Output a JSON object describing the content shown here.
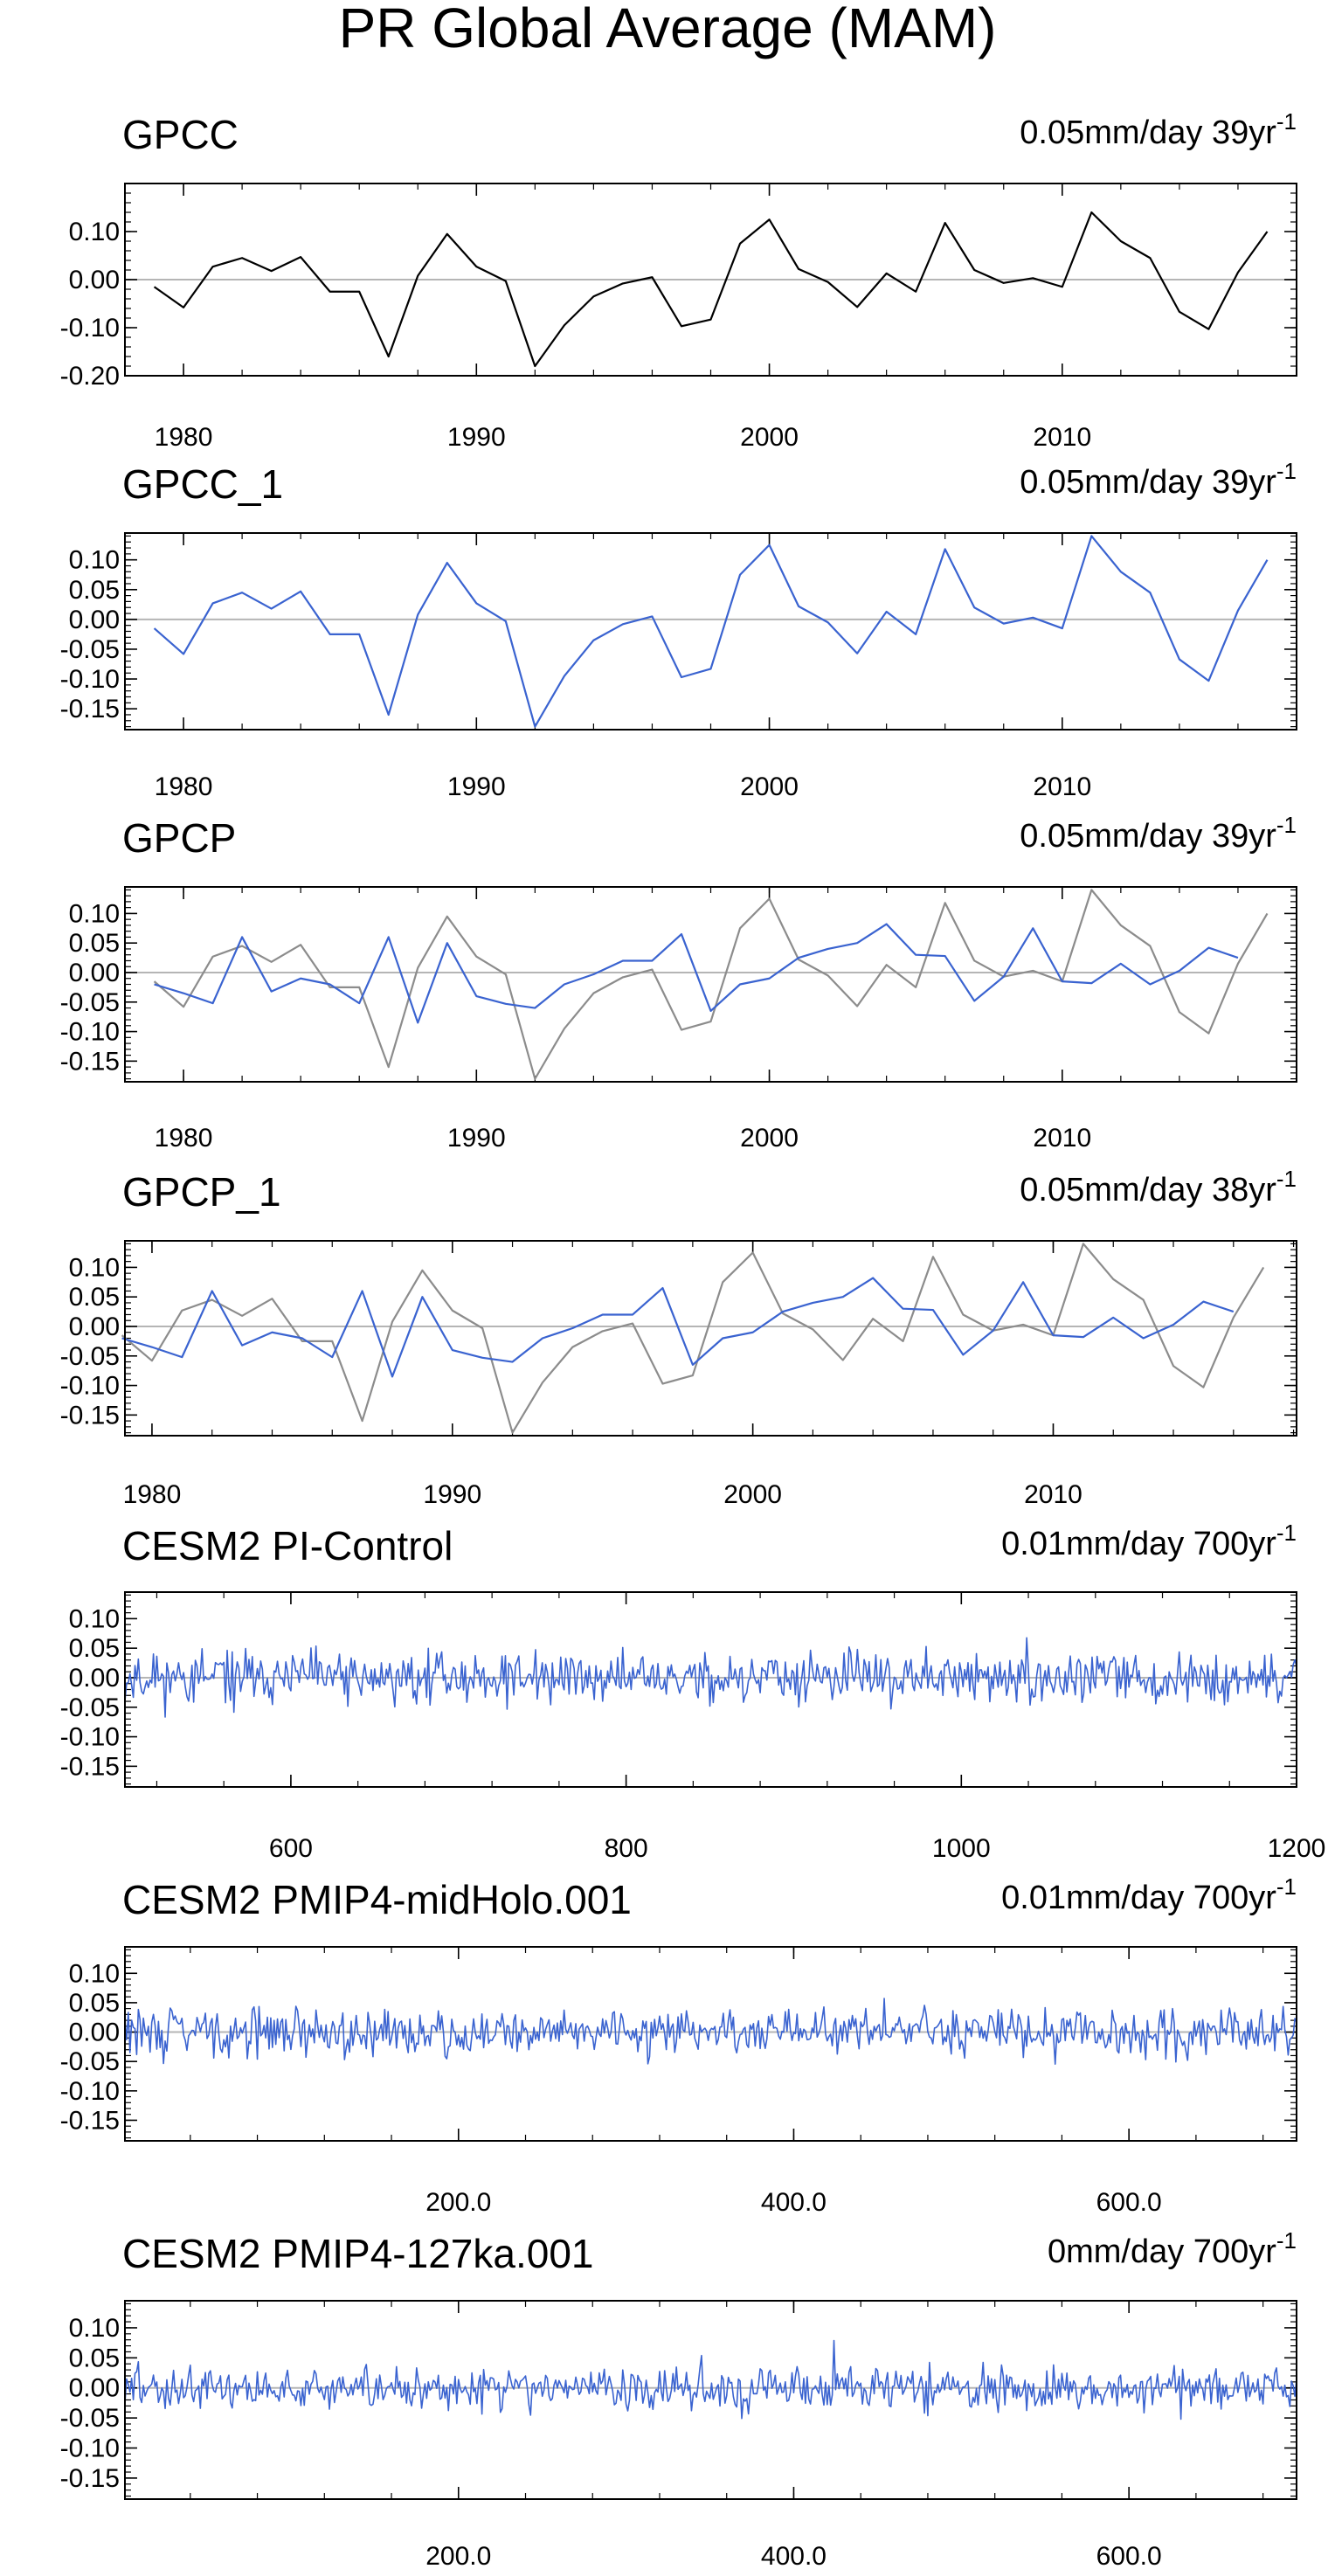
{
  "title": "PR Global Average (MAM)",
  "colors": {
    "observed": "#000000",
    "model": "#3a63d0",
    "reference": "#8c8c8c",
    "zero_line": "#b5b5b5",
    "frame": "#000000"
  },
  "chart_data": [
    {
      "type": "line",
      "title": "GPCC",
      "trend_label": "0.05mm/day 39yr",
      "trend_exponent": "-1",
      "xlim": [
        1978,
        2018
      ],
      "ylim": [
        -0.2,
        0.2
      ],
      "x_ticks": [
        1980,
        1990,
        2000,
        2010
      ],
      "x_tick_labels": [
        "1980",
        "1990",
        "2000",
        "2010"
      ],
      "y_ticks": [
        -0.2,
        -0.1,
        0,
        0.1
      ],
      "y_tick_labels": [
        "-0.20",
        "-0.10",
        "0.00",
        "0.10"
      ],
      "x_start": 1979,
      "series": [
        {
          "role": "observed",
          "values": [
            -0.015,
            -0.058,
            0.027,
            0.045,
            0.018,
            0.047,
            -0.025,
            -0.025,
            -0.16,
            0.008,
            0.095,
            0.027,
            -0.003,
            -0.18,
            -0.095,
            -0.035,
            -0.008,
            0.005,
            -0.097,
            -0.083,
            0.075,
            0.125,
            0.022,
            -0.005,
            -0.057,
            0.013,
            -0.025,
            0.118,
            0.02,
            -0.007,
            0.003,
            -0.015,
            0.14,
            0.08,
            0.045,
            -0.067,
            -0.103,
            0.015,
            0.1
          ]
        }
      ]
    },
    {
      "type": "line",
      "title": "GPCC_1",
      "trend_label": "0.05mm/day 39yr",
      "trend_exponent": "-1",
      "xlim": [
        1978,
        2018
      ],
      "ylim": [
        -0.185,
        0.145
      ],
      "x_ticks": [
        1980,
        1990,
        2000,
        2010
      ],
      "x_tick_labels": [
        "1980",
        "1990",
        "2000",
        "2010"
      ],
      "y_ticks": [
        -0.15,
        -0.1,
        -0.05,
        0,
        0.05,
        0.1
      ],
      "y_tick_labels": [
        "-0.15",
        "-0.10",
        "-0.05",
        "0.00",
        "0.05",
        "0.10"
      ],
      "x_start": 1979,
      "series": [
        {
          "role": "model",
          "values": [
            -0.015,
            -0.058,
            0.027,
            0.045,
            0.018,
            0.047,
            -0.025,
            -0.025,
            -0.16,
            0.008,
            0.095,
            0.027,
            -0.003,
            -0.18,
            -0.095,
            -0.035,
            -0.008,
            0.005,
            -0.097,
            -0.083,
            0.075,
            0.125,
            0.022,
            -0.005,
            -0.057,
            0.013,
            -0.025,
            0.118,
            0.02,
            -0.007,
            0.003,
            -0.015,
            0.14,
            0.08,
            0.045,
            -0.067,
            -0.103,
            0.015,
            0.1
          ]
        }
      ]
    },
    {
      "type": "line",
      "title": "GPCP",
      "trend_label": "0.05mm/day 39yr",
      "trend_exponent": "-1",
      "xlim": [
        1978,
        2018
      ],
      "ylim": [
        -0.185,
        0.145
      ],
      "x_ticks": [
        1980,
        1990,
        2000,
        2010
      ],
      "x_tick_labels": [
        "1980",
        "1990",
        "2000",
        "2010"
      ],
      "y_ticks": [
        -0.15,
        -0.1,
        -0.05,
        0,
        0.05,
        0.1
      ],
      "y_tick_labels": [
        "-0.15",
        "-0.10",
        "-0.05",
        "0.00",
        "0.05",
        "0.10"
      ],
      "x_start": 1979,
      "series": [
        {
          "role": "reference",
          "values": [
            -0.015,
            -0.058,
            0.027,
            0.045,
            0.018,
            0.047,
            -0.025,
            -0.025,
            -0.16,
            0.008,
            0.095,
            0.027,
            -0.003,
            -0.18,
            -0.095,
            -0.035,
            -0.008,
            0.005,
            -0.097,
            -0.083,
            0.075,
            0.125,
            0.022,
            -0.005,
            -0.057,
            0.013,
            -0.025,
            0.118,
            0.02,
            -0.007,
            0.003,
            -0.015,
            0.14,
            0.08,
            0.045,
            -0.067,
            -0.103,
            0.015,
            0.1
          ]
        },
        {
          "role": "model",
          "values": [
            -0.02,
            -0.035,
            -0.052,
            0.06,
            -0.032,
            -0.01,
            -0.02,
            -0.052,
            0.06,
            -0.085,
            0.05,
            -0.04,
            -0.053,
            -0.06,
            -0.02,
            -0.003,
            0.02,
            0.02,
            0.065,
            -0.065,
            -0.02,
            -0.01,
            0.025,
            0.04,
            0.05,
            0.082,
            0.03,
            0.028,
            -0.048,
            -0.007,
            0.075,
            -0.015,
            -0.018,
            0.015,
            -0.02,
            0.003,
            0.042,
            0.025
          ]
        }
      ]
    },
    {
      "type": "line",
      "title": "GPCP_1",
      "trend_label": "0.05mm/day 38yr",
      "trend_exponent": "-1",
      "xlim": [
        1979.1,
        2018.1
      ],
      "ylim": [
        -0.185,
        0.145
      ],
      "x_ticks": [
        1980,
        1990,
        2000,
        2010
      ],
      "x_tick_labels": [
        "1980",
        "1990",
        "2000",
        "2010"
      ],
      "y_ticks": [
        -0.15,
        -0.1,
        -0.05,
        0,
        0.05,
        0.1
      ],
      "y_tick_labels": [
        "-0.15",
        "-0.10",
        "-0.05",
        "0.00",
        "0.05",
        "0.10"
      ],
      "x_start": 1979,
      "series": [
        {
          "role": "reference",
          "values": [
            -0.015,
            -0.058,
            0.027,
            0.045,
            0.018,
            0.047,
            -0.025,
            -0.025,
            -0.16,
            0.008,
            0.095,
            0.027,
            -0.003,
            -0.18,
            -0.095,
            -0.035,
            -0.008,
            0.005,
            -0.097,
            -0.083,
            0.075,
            0.125,
            0.022,
            -0.005,
            -0.057,
            0.013,
            -0.025,
            0.118,
            0.02,
            -0.007,
            0.003,
            -0.015,
            0.14,
            0.08,
            0.045,
            -0.067,
            -0.103,
            0.015,
            0.1
          ]
        },
        {
          "role": "model",
          "values": [
            -0.02,
            -0.035,
            -0.052,
            0.06,
            -0.032,
            -0.01,
            -0.02,
            -0.052,
            0.06,
            -0.085,
            0.05,
            -0.04,
            -0.053,
            -0.06,
            -0.02,
            -0.003,
            0.02,
            0.02,
            0.065,
            -0.065,
            -0.02,
            -0.01,
            0.025,
            0.04,
            0.05,
            0.082,
            0.03,
            0.028,
            -0.048,
            -0.007,
            0.075,
            -0.015,
            -0.018,
            0.015,
            -0.02,
            0.003,
            0.042,
            0.025
          ]
        }
      ]
    },
    {
      "type": "line",
      "title": "CESM2 PI-Control",
      "trend_label": "0.01mm/day 700yr",
      "trend_exponent": "-1",
      "xlim": [
        501,
        1200
      ],
      "ylim": [
        -0.185,
        0.145
      ],
      "x_ticks": [
        600,
        800,
        1000,
        1200
      ],
      "x_tick_labels": [
        "600",
        "800",
        "1000",
        "1200"
      ],
      "y_ticks": [
        -0.15,
        -0.1,
        -0.05,
        0,
        0.05,
        0.1
      ],
      "y_tick_labels": [
        "-0.15",
        "-0.10",
        "-0.05",
        "0.00",
        "0.05",
        "0.10"
      ],
      "x_start": 501,
      "series": [
        {
          "role": "model",
          "noise": {
            "count": 700,
            "scale": 0.022,
            "clip": 0.07,
            "seed": 11
          }
        }
      ]
    },
    {
      "type": "line",
      "title": "CESM2 PMIP4-midHolo.001",
      "trend_label": "0.01mm/day 700yr",
      "trend_exponent": "-1",
      "xlim": [
        1,
        700
      ],
      "ylim": [
        -0.185,
        0.145
      ],
      "x_ticks": [
        200,
        400,
        600
      ],
      "x_tick_labels": [
        "200.0",
        "400.0",
        "600.0"
      ],
      "y_ticks": [
        -0.15,
        -0.1,
        -0.05,
        0,
        0.05,
        0.1
      ],
      "y_tick_labels": [
        "-0.15",
        "-0.10",
        "-0.05",
        "0.00",
        "0.05",
        "0.10"
      ],
      "x_start": 1,
      "series": [
        {
          "role": "model",
          "noise": {
            "count": 700,
            "scale": 0.02,
            "clip": 0.08,
            "seed": 29
          }
        }
      ]
    },
    {
      "type": "line",
      "title": "CESM2 PMIP4-127ka.001",
      "trend_label": "0mm/day 700yr",
      "trend_exponent": "-1",
      "xlim": [
        1,
        700
      ],
      "ylim": [
        -0.185,
        0.145
      ],
      "x_ticks": [
        200,
        400,
        600
      ],
      "x_tick_labels": [
        "200.0",
        "400.0",
        "600.0"
      ],
      "y_ticks": [
        -0.15,
        -0.1,
        -0.05,
        0,
        0.05,
        0.1
      ],
      "y_tick_labels": [
        "-0.15",
        "-0.10",
        "-0.05",
        "0.00",
        "0.05",
        "0.10"
      ],
      "x_start": 1,
      "series": [
        {
          "role": "model",
          "noise": {
            "count": 700,
            "scale": 0.018,
            "clip": 0.085,
            "seed": 47
          }
        }
      ]
    }
  ]
}
